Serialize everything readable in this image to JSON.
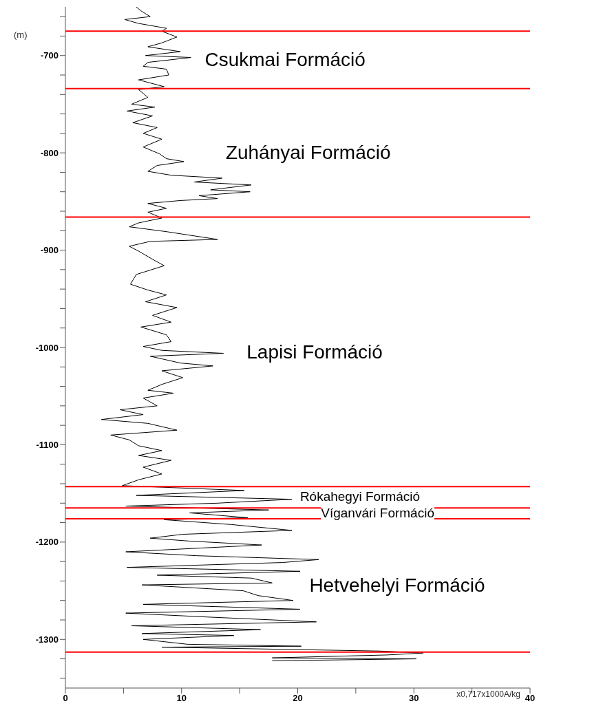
{
  "chart_data": {
    "type": "line",
    "ylabel": "(m)",
    "xlabel": "x0,717x1000A/kg",
    "xlim": [
      0,
      40
    ],
    "xticks": [
      0,
      {
        "value": 5,
        "label": null
      },
      10,
      {
        "value": 15,
        "label": null
      },
      20,
      {
        "value": 25,
        "label": null
      },
      30,
      {
        "value": 35,
        "label": null
      },
      40
    ],
    "ylim": [
      -1350,
      -650
    ],
    "yticks": [
      {
        "value": -1340,
        "label": null
      },
      {
        "value": -1320,
        "label": null
      },
      -1300,
      {
        "value": -1280,
        "label": null
      },
      {
        "value": -1260,
        "label": null
      },
      {
        "value": -1240,
        "label": null
      },
      {
        "value": -1220,
        "label": null
      },
      -1200,
      {
        "value": -1180,
        "label": null
      },
      {
        "value": -1160,
        "label": null
      },
      {
        "value": -1140,
        "label": null
      },
      {
        "value": -1120,
        "label": null
      },
      -1100,
      {
        "value": -1080,
        "label": null
      },
      {
        "value": -1060,
        "label": null
      },
      {
        "value": -1040,
        "label": null
      },
      {
        "value": -1020,
        "label": null
      },
      -1000,
      {
        "value": -980,
        "label": null
      },
      {
        "value": -960,
        "label": null
      },
      {
        "value": -940,
        "label": null
      },
      {
        "value": -920,
        "label": null
      },
      -900,
      {
        "value": -880,
        "label": null
      },
      {
        "value": -860,
        "label": null
      },
      {
        "value": -840,
        "label": null
      },
      {
        "value": -820,
        "label": null
      },
      -800,
      {
        "value": -780,
        "label": null
      },
      {
        "value": -760,
        "label": null
      },
      {
        "value": -740,
        "label": null
      },
      {
        "value": -720,
        "label": null
      },
      -700,
      {
        "value": -680,
        "label": null
      },
      {
        "value": -660,
        "label": null
      }
    ],
    "grid": false,
    "legend": false,
    "marker": "none",
    "line_style": "solid",
    "series": [
      {
        "color": "#000000",
        "x": [
          6.1,
          6.5,
          7.3,
          5.1,
          6.3,
          8.7,
          8.3,
          9.6,
          8.3,
          7.1,
          9.9,
          6.9,
          10.8,
          7.1,
          6.7,
          8.7,
          8.9,
          6.3,
          8.5,
          6.3,
          7.1,
          5.7,
          7.7,
          5.3,
          7.5,
          5.8,
          7.9,
          6.7,
          8.3,
          6.7,
          8.1,
          8.7,
          10.2,
          7.9,
          7.1,
          9.1,
          13.5,
          11.1,
          16.0,
          12.5,
          15.9,
          11.5,
          13.1,
          9.9,
          7.1,
          8.7,
          7.1,
          8.3,
          6.3,
          5.5,
          8.7,
          13.1,
          7.3,
          5.5,
          6.3,
          7.3,
          8.5,
          6.1,
          5.6,
          7.1,
          8.7,
          6.9,
          9.6,
          7.5,
          9.1,
          6.5,
          8.7,
          9.1,
          6.7,
          8.3,
          13.6,
          7.3,
          9.9,
          12.7,
          8.3,
          10.1,
          8.3,
          7.1,
          9.3,
          6.7,
          7.9,
          4.7,
          6.7,
          3.1,
          7.1,
          9.6,
          3.9,
          5.5,
          6.3,
          8.3,
          6.3,
          9.1,
          6.7,
          8.3,
          6.3,
          4.9,
          15.4,
          6.1,
          19.5,
          13.1,
          5.2,
          17.5,
          10.7,
          15.7,
          8.5,
          14.3,
          19.5,
          10.1,
          7.3,
          10.7,
          16.9,
          5.2,
          11.3,
          21.8,
          18.7,
          5.3,
          20.2,
          7.9,
          16.0,
          17.8,
          6.6,
          15.3,
          16.6,
          19.6,
          6.7,
          20.2,
          5.2,
          12.2,
          21.6,
          5.7,
          16.8,
          6.6,
          14.5,
          6.7,
          10.5,
          20.3,
          8.3,
          27.1,
          30.8,
          27.7,
          17.8,
          30.2,
          17.8
        ],
        "values": [
          -650,
          -654,
          -660,
          -663,
          -667,
          -672,
          -675,
          -681,
          -687,
          -691,
          -696,
          -700,
          -702,
          -707,
          -711,
          -714,
          -720,
          -725,
          -732,
          -735,
          -743,
          -750,
          -753,
          -757,
          -762,
          -769,
          -774,
          -780,
          -786,
          -794,
          -801,
          -806,
          -809,
          -813,
          -819,
          -823,
          -826,
          -830,
          -833,
          -838,
          -840,
          -844,
          -847,
          -849,
          -852,
          -857,
          -861,
          -867,
          -872,
          -876,
          -881,
          -889,
          -891,
          -896,
          -901,
          -908,
          -916,
          -925,
          -935,
          -941,
          -946,
          -953,
          -959,
          -967,
          -974,
          -979,
          -987,
          -994,
          -999,
          -1003,
          -1006,
          -1009,
          -1016,
          -1019,
          -1024,
          -1031,
          -1038,
          -1044,
          -1047,
          -1052,
          -1060,
          -1064,
          -1069,
          -1074,
          -1078,
          -1085,
          -1090,
          -1095,
          -1101,
          -1106,
          -1111,
          -1116,
          -1123,
          -1130,
          -1136,
          -1142,
          -1147,
          -1152,
          -1156,
          -1160,
          -1163,
          -1167,
          -1170,
          -1175,
          -1177,
          -1182,
          -1188,
          -1192,
          -1196,
          -1199,
          -1203,
          -1210,
          -1214,
          -1218,
          -1221,
          -1226,
          -1230,
          -1234,
          -1237,
          -1242,
          -1244,
          -1250,
          -1255,
          -1260,
          -1264,
          -1269,
          -1273,
          -1277,
          -1282,
          -1286,
          -1290,
          -1294,
          -1296,
          -1300,
          -1305,
          -1307,
          -1308,
          -1312,
          -1314,
          -1316,
          -1319,
          -1320,
          -1322
        ]
      }
    ],
    "ref_lines": [
      {
        "axis": "y",
        "value": -675,
        "color": "#ff0000"
      },
      {
        "axis": "y",
        "value": -734,
        "color": "#ff0000"
      },
      {
        "axis": "y",
        "value": -866,
        "color": "#ff0000"
      },
      {
        "axis": "y",
        "value": -1143,
        "color": "#ff0000"
      },
      {
        "axis": "y",
        "value": -1165,
        "color": "#ff0000"
      },
      {
        "axis": "y",
        "value": -1176,
        "color": "#ff0000"
      },
      {
        "axis": "y",
        "value": -1313,
        "color": "#ff0000"
      }
    ],
    "annotations": [
      "Csukmai Formáció",
      "Zuhányai Formáció",
      "Lapisi Formáció",
      "Rókahegyi Formáció",
      "Víganvári Formáció",
      "Hetvehelyi Formáció"
    ]
  }
}
